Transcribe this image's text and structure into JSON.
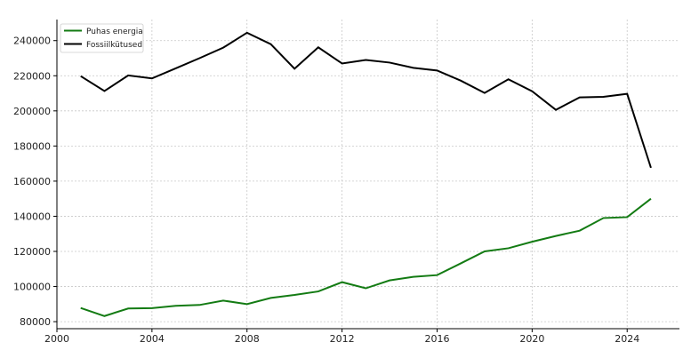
{
  "chart_data": {
    "type": "line",
    "title": "",
    "xlabel": "",
    "ylabel": "",
    "xlim": [
      2000,
      2026.2
    ],
    "ylim": [
      76000,
      252000
    ],
    "x_ticks": [
      2000,
      2004,
      2008,
      2012,
      2016,
      2020,
      2024
    ],
    "y_ticks": [
      80000,
      100000,
      120000,
      140000,
      160000,
      180000,
      200000,
      220000,
      240000
    ],
    "grid": true,
    "legend_position": "top-left",
    "x": [
      2001,
      2002,
      2003,
      2004,
      2005,
      2006,
      2007,
      2008,
      2009,
      2010,
      2011,
      2012,
      2013,
      2014,
      2015,
      2016,
      2017,
      2018,
      2019,
      2020,
      2021,
      2022,
      2023,
      2024,
      2025
    ],
    "series": [
      {
        "name": "Puhas energia",
        "color": "#137b13",
        "values": [
          87800,
          83200,
          87500,
          87700,
          89000,
          89500,
          92000,
          90000,
          93500,
          95200,
          97200,
          102500,
          99000,
          103500,
          105500,
          106500,
          113200,
          120000,
          121800,
          125500,
          128800,
          131800,
          139000,
          139500,
          150000
        ]
      },
      {
        "name": "Fossiilkütused",
        "color": "#000000",
        "values": [
          219800,
          211300,
          220200,
          218500,
          224200,
          230000,
          236000,
          244500,
          238000,
          224000,
          236200,
          227000,
          229000,
          227500,
          224500,
          223000,
          217200,
          210200,
          218000,
          211200,
          200600,
          207700,
          208000,
          209700,
          167600
        ]
      }
    ]
  }
}
